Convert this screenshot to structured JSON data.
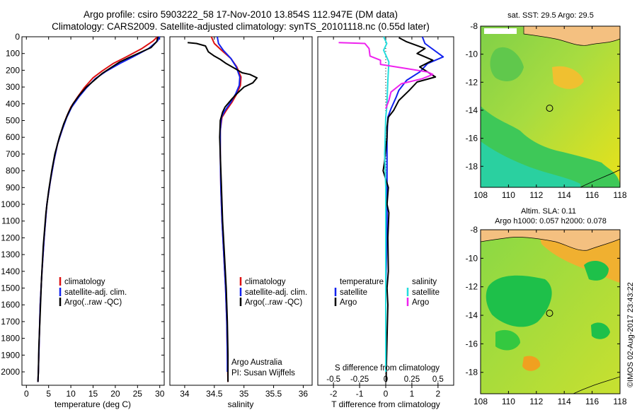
{
  "header": {
    "line1": "Argo profile: csiro 5903222_58 17-Nov-2010 13.854S 112.947E (DM data)",
    "line2": "Climatology: CARS2009. Satellite-adjusted climatology: synTS_20101118.nc (0.55d later)"
  },
  "watermark": "©IMOS 02-Aug-2017 23:43:22",
  "colors": {
    "climatology": "#dd1111",
    "satellite": "#1122ee",
    "argo": "#000000",
    "temp_sat": "#1122ee",
    "sal_sat": "#22dddd",
    "sal_argo": "#ee22ee"
  },
  "chart_data": [
    {
      "id": "temperature",
      "type": "line",
      "xlabel": "temperature (deg C)",
      "xlim": [
        -1,
        31
      ],
      "xticks": [
        0,
        5,
        10,
        15,
        20,
        25,
        30
      ],
      "ylim": [
        0,
        2080
      ],
      "yticks": [
        0,
        100,
        200,
        300,
        400,
        500,
        600,
        700,
        800,
        900,
        1000,
        1100,
        1200,
        1300,
        1400,
        1500,
        1600,
        1700,
        1800,
        1900,
        2000
      ],
      "legend": [
        "climatology",
        "satellite-adj. clim.",
        "Argo(..raw -QC)"
      ],
      "series": [
        {
          "name": "climatology",
          "color_key": "climatology",
          "points": [
            [
              29.5,
              0
            ],
            [
              28.5,
              25
            ],
            [
              26,
              70
            ],
            [
              22.5,
              120
            ],
            [
              19.5,
              160
            ],
            [
              17,
              205
            ],
            [
              15,
              245
            ],
            [
              13,
              305
            ],
            [
              11.5,
              360
            ],
            [
              10,
              420
            ],
            [
              9,
              480
            ],
            [
              8,
              560
            ],
            [
              7,
              640
            ],
            [
              6.2,
              740
            ],
            [
              5.4,
              860
            ],
            [
              4.6,
              1000
            ],
            [
              4,
              1200
            ],
            [
              3.5,
              1400
            ],
            [
              3.1,
              1600
            ],
            [
              2.9,
              1800
            ],
            [
              2.7,
              2000
            ],
            [
              2.6,
              2060
            ]
          ]
        },
        {
          "name": "satellite-adj. clim.",
          "color_key": "satellite",
          "points": [
            [
              30,
              0
            ],
            [
              29.5,
              25
            ],
            [
              27.5,
              70
            ],
            [
              24,
              120
            ],
            [
              21,
              160
            ],
            [
              18,
              205
            ],
            [
              15.5,
              250
            ],
            [
              13.5,
              305
            ],
            [
              11.8,
              360
            ],
            [
              10.2,
              420
            ],
            [
              9.1,
              480
            ],
            [
              8,
              560
            ],
            [
              7,
              640
            ],
            [
              6.2,
              740
            ],
            [
              5.4,
              860
            ],
            [
              4.6,
              1000
            ],
            [
              4,
              1200
            ],
            [
              3.5,
              1400
            ],
            [
              3.1,
              1600
            ],
            [
              2.9,
              1800
            ],
            [
              2.7,
              2000
            ],
            [
              2.6,
              2060
            ]
          ]
        },
        {
          "name": "Argo",
          "color_key": "argo",
          "points": [
            [
              29.6,
              0
            ],
            [
              29.3,
              30
            ],
            [
              28,
              65
            ],
            [
              25.5,
              95
            ],
            [
              23,
              125
            ],
            [
              21,
              150
            ],
            [
              19,
              185
            ],
            [
              17,
              220
            ],
            [
              15.5,
              255
            ],
            [
              13.5,
              300
            ],
            [
              12,
              345
            ],
            [
              10.5,
              400
            ],
            [
              9.5,
              450
            ],
            [
              8.4,
              520
            ],
            [
              7.4,
              600
            ],
            [
              6.4,
              700
            ],
            [
              5.7,
              800
            ],
            [
              5,
              920
            ],
            [
              4.4,
              1050
            ],
            [
              3.8,
              1250
            ],
            [
              3.4,
              1450
            ],
            [
              3.1,
              1650
            ],
            [
              2.8,
              1850
            ],
            [
              2.7,
              2000
            ],
            [
              2.6,
              2060
            ]
          ]
        }
      ]
    },
    {
      "id": "salinity",
      "type": "line",
      "xlabel": "salinity",
      "xlim": [
        33.75,
        36.15
      ],
      "xticks": [
        34,
        34.5,
        35,
        35.5,
        36
      ],
      "ylim": [
        0,
        2080
      ],
      "legend": [
        "climatology",
        "satellite-adj. clim.",
        "Argo(..raw -QC)"
      ],
      "annotations": [
        "Argo Australia",
        "PI: Susan Wijffels"
      ],
      "series": [
        {
          "name": "climatology",
          "color_key": "climatology",
          "points": [
            [
              34.45,
              0
            ],
            [
              34.5,
              40
            ],
            [
              34.62,
              80
            ],
            [
              34.78,
              130
            ],
            [
              34.88,
              180
            ],
            [
              34.95,
              240
            ],
            [
              34.94,
              290
            ],
            [
              34.88,
              340
            ],
            [
              34.8,
              390
            ],
            [
              34.7,
              440
            ],
            [
              34.63,
              480
            ],
            [
              34.6,
              560
            ],
            [
              34.6,
              700
            ],
            [
              34.61,
              900
            ],
            [
              34.63,
              1100
            ],
            [
              34.66,
              1300
            ],
            [
              34.69,
              1500
            ],
            [
              34.71,
              1700
            ],
            [
              34.72,
              1900
            ],
            [
              34.73,
              2060
            ]
          ]
        },
        {
          "name": "satellite-adj. clim.",
          "color_key": "satellite",
          "points": [
            [
              34.55,
              0
            ],
            [
              34.57,
              40
            ],
            [
              34.65,
              80
            ],
            [
              34.78,
              130
            ],
            [
              34.87,
              180
            ],
            [
              34.93,
              240
            ],
            [
              34.92,
              290
            ],
            [
              34.86,
              340
            ],
            [
              34.78,
              390
            ],
            [
              34.68,
              440
            ],
            [
              34.62,
              480
            ],
            [
              34.6,
              560
            ],
            [
              34.6,
              700
            ],
            [
              34.61,
              900
            ],
            [
              34.63,
              1100
            ],
            [
              34.66,
              1300
            ],
            [
              34.69,
              1500
            ],
            [
              34.71,
              1700
            ],
            [
              34.72,
              1900
            ],
            [
              34.72,
              2000
            ]
          ]
        },
        {
          "name": "Argo",
          "color_key": "argo",
          "points": [
            [
              34.05,
              35
            ],
            [
              34.2,
              40
            ],
            [
              34.35,
              55
            ],
            [
              34.4,
              90
            ],
            [
              34.5,
              115
            ],
            [
              34.6,
              135
            ],
            [
              34.7,
              160
            ],
            [
              34.85,
              190
            ],
            [
              34.97,
              215
            ],
            [
              35.1,
              225
            ],
            [
              35.22,
              245
            ],
            [
              35.15,
              275
            ],
            [
              35.0,
              300
            ],
            [
              34.88,
              340
            ],
            [
              34.8,
              370
            ],
            [
              34.68,
              420
            ],
            [
              34.64,
              450
            ],
            [
              34.6,
              500
            ],
            [
              34.59,
              600
            ],
            [
              34.6,
              700
            ],
            [
              34.62,
              900
            ],
            [
              34.64,
              1100
            ],
            [
              34.67,
              1300
            ],
            [
              34.7,
              1500
            ],
            [
              34.72,
              1700
            ],
            [
              34.73,
              1900
            ],
            [
              34.73,
              2060
            ]
          ]
        }
      ]
    },
    {
      "id": "difference",
      "type": "line",
      "xlabel": "T difference from climatology",
      "xlabel_top": "S difference from climatology",
      "xlim": [
        -2.6,
        2.6
      ],
      "xticks": [
        -2,
        -1,
        0,
        1,
        2
      ],
      "xticks_s": [
        -0.5,
        -0.25,
        0,
        0.25,
        0.5
      ],
      "xticks_s_labels": [
        "-0.5",
        "-0.25",
        "0",
        "0.25",
        "0.5"
      ],
      "ylim": [
        0,
        2080
      ],
      "legend_headers": [
        "temperature",
        "salinity"
      ],
      "legend_left": [
        "satellite",
        "Argo"
      ],
      "legend_right": [
        "satellite",
        "Argo"
      ],
      "series": [
        {
          "name": "temperature satellite",
          "color_key": "temp_sat",
          "points": [
            [
              1.4,
              0
            ],
            [
              1.5,
              40
            ],
            [
              2.2,
              120
            ],
            [
              1.6,
              160
            ],
            [
              1.3,
              210
            ],
            [
              0.8,
              260
            ],
            [
              0.5,
              320
            ],
            [
              0.4,
              360
            ],
            [
              0.2,
              430
            ],
            [
              0.08,
              480
            ],
            [
              0.05,
              600
            ],
            [
              0.05,
              900
            ],
            [
              0.05,
              1100
            ],
            [
              0.03,
              1300
            ],
            [
              0,
              1500
            ],
            [
              0,
              2000
            ]
          ]
        },
        {
          "name": "temperature Argo",
          "color_key": "argo",
          "points": [
            [
              0.5,
              5
            ],
            [
              0.8,
              30
            ],
            [
              1.5,
              70
            ],
            [
              1.2,
              100
            ],
            [
              1.8,
              140
            ],
            [
              1.3,
              180
            ],
            [
              1.9,
              240
            ],
            [
              1.2,
              270
            ],
            [
              0.9,
              320
            ],
            [
              0.5,
              380
            ],
            [
              0.3,
              440
            ],
            [
              0.1,
              480
            ],
            [
              0.05,
              540
            ],
            [
              0.05,
              600
            ],
            [
              -0.05,
              750
            ],
            [
              -0.1,
              800
            ],
            [
              0.1,
              900
            ],
            [
              0.05,
              1000
            ],
            [
              0.12,
              1050
            ],
            [
              0.08,
              1200
            ],
            [
              0.1,
              1400
            ],
            [
              0.05,
              1500
            ],
            [
              0.08,
              1600
            ],
            [
              0.05,
              1800
            ],
            [
              0.02,
              2000
            ],
            [
              0.02,
              2060
            ]
          ]
        },
        {
          "name": "salinity satellite",
          "color_key": "sal_sat",
          "points": [
            [
              -0.02,
              0
            ],
            [
              0.01,
              40
            ],
            [
              -0.02,
              80
            ],
            [
              0.03,
              150
            ],
            [
              0.02,
              260
            ],
            [
              0.01,
              420
            ],
            [
              0,
              480
            ],
            [
              -0.01,
              700
            ],
            [
              0,
              900
            ],
            [
              0,
              1100
            ],
            [
              0,
              1400
            ],
            [
              0,
              1700
            ],
            [
              0,
              1900
            ],
            [
              0,
              2000
            ]
          ]
        },
        {
          "name": "salinity Argo",
          "color_key": "sal_argo",
          "points": [
            [
              -0.45,
              35
            ],
            [
              -0.2,
              40
            ],
            [
              -0.16,
              70
            ],
            [
              -0.15,
              115
            ],
            [
              -0.05,
              140
            ],
            [
              -0.05,
              165
            ],
            [
              0.2,
              190
            ],
            [
              0.4,
              210
            ],
            [
              0.45,
              225
            ],
            [
              0.35,
              250
            ],
            [
              0.15,
              280
            ],
            [
              0.05,
              330
            ],
            [
              0.03,
              380
            ],
            [
              0,
              430
            ]
          ]
        }
      ]
    }
  ],
  "maps": {
    "sst": {
      "title": "sat. SST: 29.5 Argo: 29.5",
      "xlim": [
        108,
        118
      ],
      "ylim": [
        -19.5,
        -8
      ],
      "xticks": [
        108,
        110,
        112,
        114,
        116,
        118
      ],
      "yticks": [
        -8,
        -10,
        -12,
        -14,
        -16,
        -18
      ],
      "marker": [
        112.947,
        -13.854
      ]
    },
    "sla": {
      "title1": "Altim. SLA: 0.11",
      "title2": "Argo h1000: 0.057 h2000: 0.078",
      "xlim": [
        108,
        118
      ],
      "ylim": [
        -19.5,
        -8
      ],
      "xticks": [
        108,
        110,
        112,
        114,
        116,
        118
      ],
      "yticks": [
        -8,
        -10,
        -12,
        -14,
        -16,
        -18
      ],
      "marker": [
        112.947,
        -13.854
      ]
    }
  }
}
